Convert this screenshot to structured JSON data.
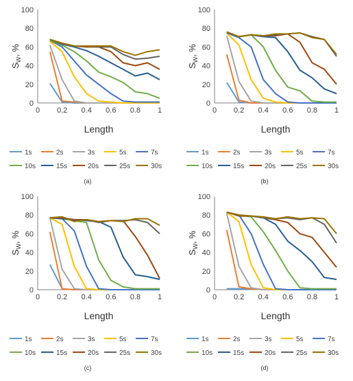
{
  "chart_data": [
    {
      "type": "line",
      "panel_label": "(a)",
      "xlabel": "Length",
      "ylabel": "S",
      "ylabel_sub": "W",
      "ylabel_unit": ", %",
      "xlim": [
        0,
        1
      ],
      "ylim": [
        0,
        100
      ],
      "x_ticks": [
        "0",
        "0.2",
        "0.4",
        "0.6",
        "0.8",
        "1"
      ],
      "y_ticks": [
        "0",
        "20",
        "40",
        "60",
        "80",
        "100"
      ],
      "grid": false,
      "legend_position": "bottom",
      "x": [
        0.1,
        0.2,
        0.3,
        0.4,
        0.5,
        0.6,
        0.7,
        0.8,
        0.9,
        1.0
      ],
      "series": [
        {
          "name": "1s",
          "color": "#5B9BD5",
          "values": [
            21,
            1,
            0,
            0,
            0,
            0,
            0,
            0,
            0,
            0
          ]
        },
        {
          "name": "2s",
          "color": "#ED7D31",
          "values": [
            55,
            2,
            1,
            0,
            0,
            0,
            0,
            0,
            0,
            0
          ]
        },
        {
          "name": "3s",
          "color": "#A5A5A5",
          "values": [
            62,
            25,
            2,
            0,
            0,
            0,
            0,
            0,
            0,
            0
          ]
        },
        {
          "name": "5s",
          "color": "#FFC000",
          "values": [
            66,
            55,
            28,
            10,
            2,
            1,
            0,
            0,
            0,
            0
          ]
        },
        {
          "name": "7s",
          "color": "#4472C4",
          "values": [
            67,
            60,
            45,
            30,
            20,
            10,
            2,
            1,
            1,
            1
          ]
        },
        {
          "name": "10s",
          "color": "#70AD47",
          "values": [
            67,
            62,
            55,
            45,
            33,
            28,
            22,
            12,
            10,
            5
          ]
        },
        {
          "name": "15s",
          "color": "#255E91",
          "values": [
            68,
            63,
            60,
            56,
            50,
            43,
            36,
            29,
            32,
            25
          ]
        },
        {
          "name": "20s",
          "color": "#9E480E",
          "values": [
            68,
            64,
            61,
            60,
            60,
            55,
            43,
            40,
            43,
            36
          ]
        },
        {
          "name": "25s",
          "color": "#636363",
          "values": [
            68,
            64,
            61,
            61,
            60,
            60,
            52,
            47,
            48,
            50
          ]
        },
        {
          "name": "30s",
          "color": "#997300",
          "values": [
            68,
            64,
            61,
            61,
            61,
            61,
            55,
            51,
            55,
            57
          ]
        }
      ]
    },
    {
      "type": "line",
      "panel_label": "(b)",
      "xlabel": "Length",
      "ylabel": "S",
      "ylabel_sub": "W",
      "ylabel_unit": ", %",
      "xlim": [
        0,
        1
      ],
      "ylim": [
        0,
        100
      ],
      "x_ticks": [
        "0",
        "0.2",
        "0.4",
        "0.6",
        "0.8",
        "1"
      ],
      "y_ticks": [
        "0",
        "20",
        "40",
        "60",
        "80",
        "100"
      ],
      "grid": false,
      "legend_position": "bottom",
      "x": [
        0.1,
        0.2,
        0.3,
        0.4,
        0.5,
        0.6,
        0.7,
        0.8,
        0.9,
        1.0
      ],
      "series": [
        {
          "name": "1s",
          "color": "#5B9BD5",
          "values": [
            22,
            1,
            0,
            0,
            0,
            0,
            0,
            0,
            0,
            0
          ]
        },
        {
          "name": "2s",
          "color": "#ED7D31",
          "values": [
            52,
            3,
            0,
            0,
            0,
            0,
            0,
            0,
            0,
            0
          ]
        },
        {
          "name": "3s",
          "color": "#A5A5A5",
          "values": [
            72,
            23,
            2,
            0,
            0,
            0,
            0,
            0,
            0,
            0
          ]
        },
        {
          "name": "5s",
          "color": "#FFC000",
          "values": [
            75,
            62,
            25,
            5,
            1,
            0,
            0,
            0,
            0,
            0
          ]
        },
        {
          "name": "7s",
          "color": "#4472C4",
          "values": [
            75,
            70,
            60,
            25,
            10,
            1,
            0,
            0,
            0,
            0
          ]
        },
        {
          "name": "10s",
          "color": "#70AD47",
          "values": [
            76,
            71,
            73,
            60,
            35,
            17,
            13,
            2,
            1,
            1
          ]
        },
        {
          "name": "15s",
          "color": "#255E91",
          "values": [
            76,
            71,
            73,
            71,
            70,
            55,
            35,
            27,
            15,
            10
          ]
        },
        {
          "name": "20s",
          "color": "#9E480E",
          "values": [
            76,
            71,
            73,
            72,
            72,
            74,
            65,
            43,
            36,
            20
          ]
        },
        {
          "name": "25s",
          "color": "#636363",
          "values": [
            76,
            71,
            73,
            72,
            73,
            74,
            75,
            71,
            68,
            50
          ]
        },
        {
          "name": "30s",
          "color": "#997300",
          "values": [
            76,
            71,
            73,
            72,
            74,
            74,
            75,
            70,
            68,
            52
          ]
        }
      ]
    },
    {
      "type": "line",
      "panel_label": "(c)",
      "xlabel": "Length",
      "ylabel": "S",
      "ylabel_sub": "W",
      "ylabel_unit": ", %",
      "xlim": [
        0,
        1
      ],
      "ylim": [
        0,
        100
      ],
      "x_ticks": [
        "0",
        "0.2",
        "0.4",
        "0.6",
        "0.8",
        "1"
      ],
      "y_ticks": [
        "0",
        "20",
        "40",
        "60",
        "80",
        "100"
      ],
      "grid": false,
      "legend_position": "bottom",
      "x": [
        0.1,
        0.2,
        0.3,
        0.4,
        0.5,
        0.6,
        0.7,
        0.8,
        0.9,
        1.0
      ],
      "series": [
        {
          "name": "1s",
          "color": "#5B9BD5",
          "values": [
            27,
            1,
            0,
            0,
            0,
            0,
            0,
            0,
            0,
            0
          ]
        },
        {
          "name": "2s",
          "color": "#ED7D31",
          "values": [
            62,
            1,
            0,
            0,
            0,
            0,
            0,
            0,
            0,
            0
          ]
        },
        {
          "name": "3s",
          "color": "#A5A5A5",
          "values": [
            77,
            22,
            1,
            0,
            0,
            0,
            0,
            0,
            0,
            0
          ]
        },
        {
          "name": "5s",
          "color": "#FFC000",
          "values": [
            77,
            70,
            25,
            1,
            0,
            0,
            0,
            0,
            0,
            0
          ]
        },
        {
          "name": "7s",
          "color": "#4472C4",
          "values": [
            77,
            76,
            63,
            25,
            1,
            0,
            0,
            0,
            0,
            0
          ]
        },
        {
          "name": "10s",
          "color": "#70AD47",
          "values": [
            77,
            76,
            74,
            72,
            32,
            10,
            3,
            1,
            1,
            1
          ]
        },
        {
          "name": "15s",
          "color": "#255E91",
          "values": [
            77,
            76,
            75,
            74,
            73,
            67,
            35,
            16,
            14,
            11
          ]
        },
        {
          "name": "20s",
          "color": "#9E480E",
          "values": [
            77,
            77,
            75,
            75,
            73,
            74,
            74,
            57,
            37,
            12
          ]
        },
        {
          "name": "25s",
          "color": "#636363",
          "values": [
            77,
            78,
            74,
            75,
            72,
            74,
            74,
            75,
            72,
            60
          ]
        },
        {
          "name": "30s",
          "color": "#997300",
          "values": [
            77,
            78,
            73,
            75,
            73,
            74,
            73,
            76,
            76,
            69
          ]
        }
      ]
    },
    {
      "type": "line",
      "panel_label": "(d)",
      "xlabel": "Length",
      "ylabel": "S",
      "ylabel_sub": "W",
      "ylabel_unit": ", %",
      "xlim": [
        0,
        1
      ],
      "ylim": [
        0,
        100
      ],
      "x_ticks": [
        "0",
        "0.2",
        "0.4",
        "0.6",
        "0.8",
        "1"
      ],
      "y_ticks": [
        "0",
        "20",
        "40",
        "60",
        "80",
        "100"
      ],
      "grid": false,
      "legend_position": "bottom",
      "x": [
        0.1,
        0.2,
        0.3,
        0.4,
        0.5,
        0.6,
        0.7,
        0.8,
        0.9,
        1.0
      ],
      "series": [
        {
          "name": "1s",
          "color": "#5B9BD5",
          "values": [
            1,
            1,
            1,
            0,
            0,
            0,
            0,
            0,
            0,
            0
          ]
        },
        {
          "name": "2s",
          "color": "#ED7D31",
          "values": [
            64,
            3,
            1,
            0,
            0,
            0,
            0,
            0,
            0,
            0
          ]
        },
        {
          "name": "3s",
          "color": "#A5A5A5",
          "values": [
            82,
            25,
            2,
            0,
            0,
            0,
            0,
            0,
            0,
            0
          ]
        },
        {
          "name": "5s",
          "color": "#FFC000",
          "values": [
            83,
            73,
            27,
            2,
            0,
            0,
            0,
            0,
            0,
            0
          ]
        },
        {
          "name": "7s",
          "color": "#4472C4",
          "values": [
            83,
            80,
            60,
            27,
            1,
            0,
            0,
            0,
            0,
            0
          ]
        },
        {
          "name": "10s",
          "color": "#70AD47",
          "values": [
            83,
            80,
            78,
            62,
            42,
            20,
            2,
            1,
            1,
            1
          ]
        },
        {
          "name": "15s",
          "color": "#255E91",
          "values": [
            83,
            79,
            79,
            77,
            70,
            52,
            42,
            30,
            13,
            11
          ]
        },
        {
          "name": "20s",
          "color": "#9E480E",
          "values": [
            83,
            79,
            79,
            77,
            75,
            72,
            60,
            56,
            40,
            24
          ]
        },
        {
          "name": "25s",
          "color": "#636363",
          "values": [
            83,
            80,
            79,
            77,
            76,
            77,
            75,
            77,
            70,
            50
          ]
        },
        {
          "name": "30s",
          "color": "#997300",
          "values": [
            83,
            80,
            79,
            78,
            76,
            78,
            76,
            77,
            76,
            60
          ]
        }
      ]
    }
  ]
}
